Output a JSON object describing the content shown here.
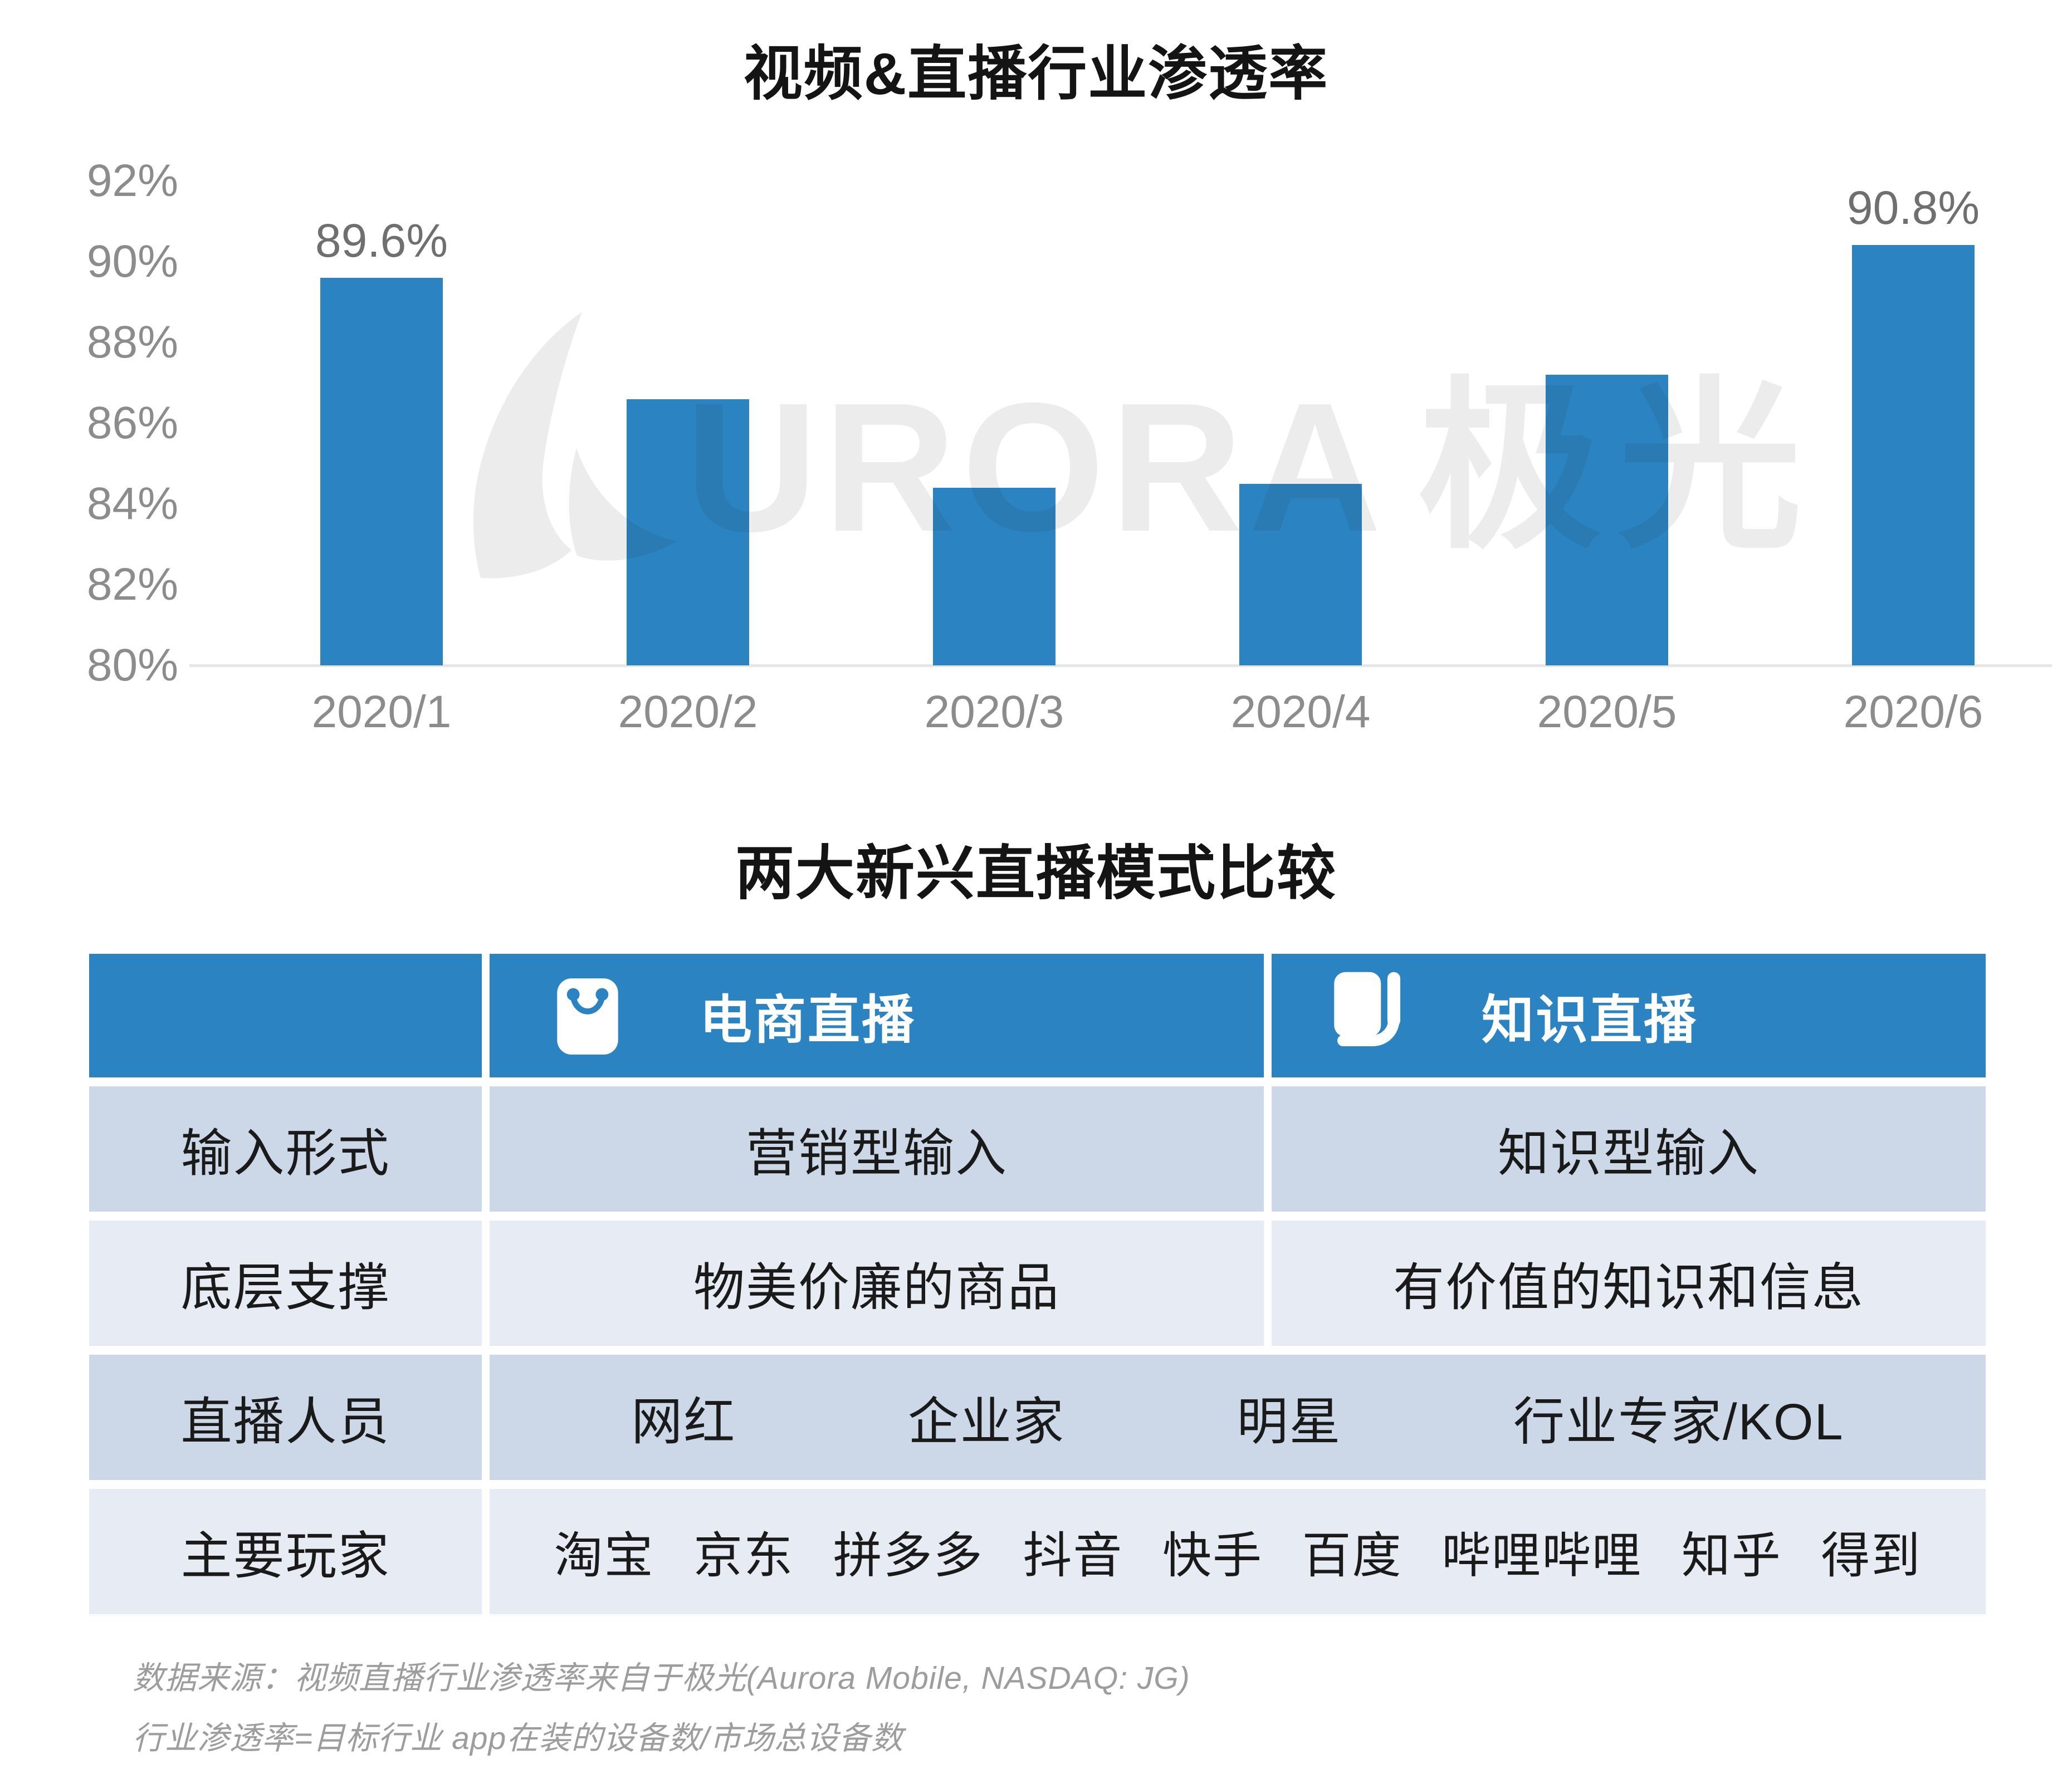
{
  "chart_data": {
    "type": "bar",
    "title": "视频&直播行业渗透率",
    "categories": [
      "2020/1",
      "2020/2",
      "2020/3",
      "2020/4",
      "2020/5",
      "2020/6"
    ],
    "values": [
      89.6,
      86.6,
      84.4,
      84.5,
      87.2,
      90.8
    ],
    "data_labels": [
      "89.6%",
      "",
      "",
      "",
      "",
      "90.8%"
    ],
    "ylim": [
      80,
      92
    ],
    "ytick_labels": [
      "92%",
      "90%",
      "88%",
      "86%",
      "84%",
      "82%",
      "80%"
    ],
    "grid": false,
    "legend": false,
    "xlabel": "",
    "ylabel": "",
    "bar_color": "#2b84c1",
    "axis_line_color": "#e6e6e6",
    "axis_text_color": "#8c8c8c",
    "data_label_color": "#6f6f6f",
    "watermark": {
      "logo": "aurora-swoosh-logo",
      "letters": "URORA",
      "cjk": "极光"
    }
  },
  "comparison_table": {
    "title": "两大新兴直播模式比较",
    "header": [
      {
        "label": ""
      },
      {
        "label": "电商直播",
        "icon": "shopping-bag-icon"
      },
      {
        "label": "知识直播",
        "icon": "book-icon"
      }
    ],
    "rows": [
      {
        "label": "输入形式",
        "cells": [
          "营销型输入",
          "知识型输入"
        ]
      },
      {
        "label": "底层支撑",
        "cells": [
          "物美价廉的商品",
          "有价值的知识和信息"
        ]
      },
      {
        "label": "直播人员",
        "merged_items": [
          "网红",
          "企业家",
          "明星",
          "行业专家/KOL"
        ]
      },
      {
        "label": "主要玩家",
        "merged_items": [
          "淘宝",
          "京东",
          "拼多多",
          "抖音",
          "快手",
          "百度",
          "哔哩哔哩",
          "知乎",
          "得到"
        ]
      }
    ],
    "colors": {
      "header_bg": "#2b84c1",
      "header_text": "#ffffff",
      "row_dark": "#ccd8e8",
      "row_light": "#e7ebf4",
      "body_text": "#1a1a1a"
    }
  },
  "footnotes": [
    "数据来源：视频直播行业渗透率来自于极光(Aurora Mobile, NASDAQ: JG)",
    "行业渗透率=目标行业 app在装的设备数/市场总设备数"
  ]
}
